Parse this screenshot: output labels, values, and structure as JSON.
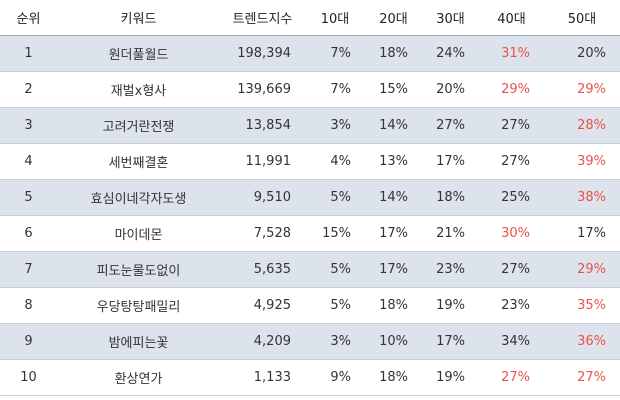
{
  "table": {
    "header": [
      "순위",
      "키워드",
      "트렌드지수",
      "10대",
      "20대",
      "30대",
      "40대",
      "50대"
    ],
    "rows": [
      [
        "1",
        "원더풀월드",
        "198,394",
        "7%",
        "18%",
        "24%",
        "31%",
        "20%"
      ],
      [
        "2",
        "재벌x형사",
        "139,669",
        "7%",
        "15%",
        "20%",
        "29%",
        "29%"
      ],
      [
        "3",
        "고려거란전쟁",
        "13,854",
        "3%",
        "14%",
        "27%",
        "27%",
        "28%"
      ],
      [
        "4",
        "세번째결혼",
        "11,991",
        "4%",
        "13%",
        "17%",
        "27%",
        "39%"
      ],
      [
        "5",
        "효심이네각자도생",
        "9,510",
        "5%",
        "14%",
        "18%",
        "25%",
        "38%"
      ],
      [
        "6",
        "마이데몬",
        "7,528",
        "15%",
        "17%",
        "21%",
        "30%",
        "17%"
      ],
      [
        "7",
        "피도눈물도없이",
        "5,635",
        "5%",
        "17%",
        "23%",
        "27%",
        "29%"
      ],
      [
        "8",
        "우당탕탕패밀리",
        "4,925",
        "5%",
        "18%",
        "19%",
        "23%",
        "35%"
      ],
      [
        "9",
        "밤에피는꽃",
        "4,209",
        "3%",
        "10%",
        "17%",
        "34%",
        "36%"
      ],
      [
        "10",
        "환상연가",
        "1,133",
        "9%",
        "18%",
        "19%",
        "27%",
        "27%"
      ]
    ]
  }
}
